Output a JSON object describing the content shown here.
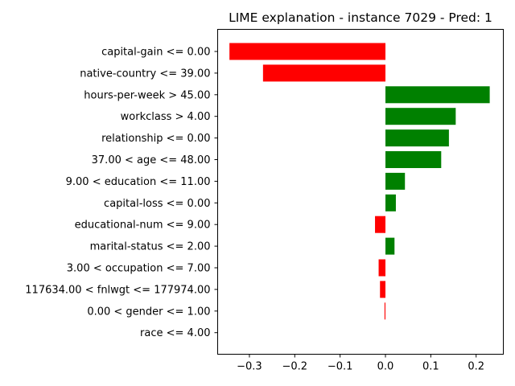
{
  "chart_data": {
    "type": "bar",
    "orientation": "horizontal",
    "title": "LIME explanation - instance 7029 - Pred: 1",
    "xlabel": "",
    "ylabel": "",
    "xlim": [
      -0.37,
      0.26
    ],
    "xticks": [
      -0.3,
      -0.2,
      -0.1,
      0.0,
      0.1,
      0.2
    ],
    "xtick_labels": [
      "−0.3",
      "−0.2",
      "−0.1",
      "0.0",
      "0.1",
      "0.2"
    ],
    "grid": false,
    "legend": "none",
    "categories": [
      "capital-gain <= 0.00",
      "native-country <= 39.00",
      "hours-per-week > 45.00",
      "workclass > 4.00",
      "relationship <= 0.00",
      "37.00 < age <= 48.00",
      "9.00 < education <= 11.00",
      "capital-loss <= 0.00",
      "educational-num <= 9.00",
      "marital-status <= 2.00",
      "3.00 < occupation <= 7.00",
      "117634.00 < fnlwgt <= 177974.00",
      "0.00 < gender <= 1.00",
      "race <= 4.00"
    ],
    "values": [
      -0.344,
      -0.27,
      0.23,
      0.155,
      0.14,
      0.123,
      0.043,
      0.023,
      -0.023,
      0.02,
      -0.015,
      -0.012,
      -0.002,
      0.0
    ],
    "colors": {
      "positive": "#008000",
      "negative": "#ff0000"
    }
  }
}
